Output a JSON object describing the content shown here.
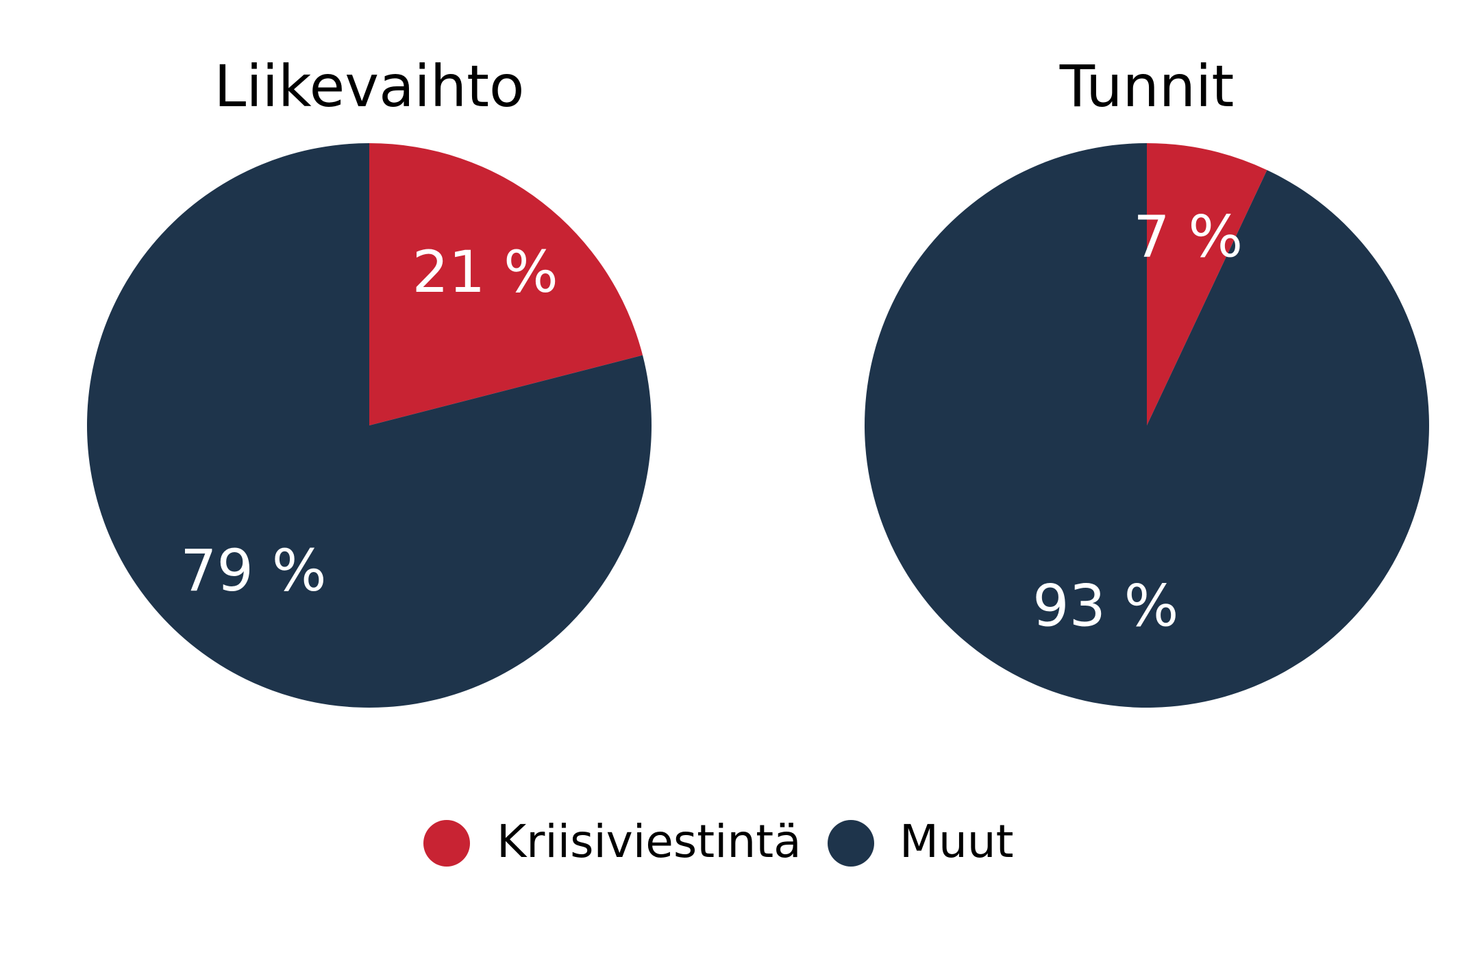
{
  "chart_data": [
    {
      "type": "pie",
      "title": "Liikevaihto",
      "categories": [
        "Kriisiviestintä",
        "Muut"
      ],
      "values": [
        21,
        79
      ],
      "value_labels": [
        "21 %",
        "79 %"
      ],
      "colors": [
        "#c82333",
        "#1e344b"
      ]
    },
    {
      "type": "pie",
      "title": "Tunnit",
      "categories": [
        "Kriisiviestintä",
        "Muut"
      ],
      "values": [
        7,
        93
      ],
      "value_labels": [
        "7 %",
        "93 %"
      ],
      "colors": [
        "#c82333",
        "#1e344b"
      ]
    }
  ]
}
